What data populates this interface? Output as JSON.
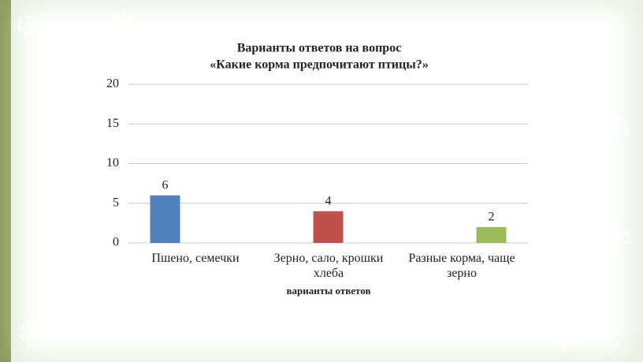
{
  "chart_data": {
    "type": "bar",
    "title": "Варианты ответов на вопрос",
    "subtitle": "«Какие корма предпочитают птицы?»",
    "x_label": "варианты ответов",
    "categories": [
      "Пшено, семечки",
      "Зерно, сало, крошки хлеба",
      "Разные корма, чаще зерно"
    ],
    "series": [
      {
        "color": "#4f81bd",
        "values": [
          6,
          null,
          null
        ]
      },
      {
        "color": "#c0504d",
        "values": [
          null,
          4,
          null
        ]
      },
      {
        "color": "#9bbb59",
        "values": [
          null,
          null,
          2
        ]
      }
    ],
    "ylim": [
      0,
      20
    ],
    "yticks": [
      0,
      5,
      10,
      15,
      20
    ],
    "grid": true
  }
}
